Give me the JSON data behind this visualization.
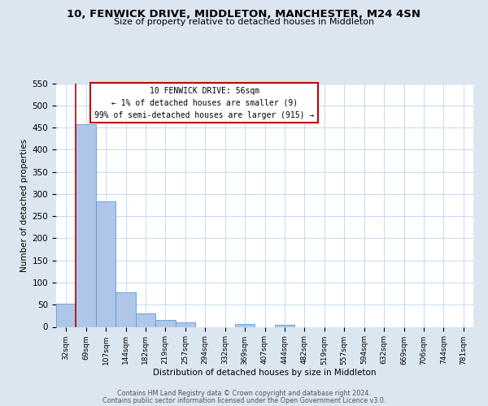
{
  "title": "10, FENWICK DRIVE, MIDDLETON, MANCHESTER, M24 4SN",
  "subtitle": "Size of property relative to detached houses in Middleton",
  "bar_labels": [
    "32sqm",
    "69sqm",
    "107sqm",
    "144sqm",
    "182sqm",
    "219sqm",
    "257sqm",
    "294sqm",
    "332sqm",
    "369sqm",
    "407sqm",
    "444sqm",
    "482sqm",
    "519sqm",
    "557sqm",
    "594sqm",
    "632sqm",
    "669sqm",
    "706sqm",
    "744sqm",
    "781sqm"
  ],
  "bar_values": [
    53,
    457,
    283,
    78,
    31,
    16,
    10,
    0,
    0,
    6,
    0,
    5,
    0,
    0,
    0,
    0,
    0,
    0,
    0,
    0,
    0
  ],
  "bar_color": "#aec6e8",
  "bar_edge_color": "#5b9bd5",
  "background_color": "#dce6f1",
  "plot_background": "#ffffff",
  "grid_color": "#c5d9f1",
  "marker_line_color": "#c00000",
  "ylim": [
    0,
    550
  ],
  "yticks": [
    0,
    50,
    100,
    150,
    200,
    250,
    300,
    350,
    400,
    450,
    500,
    550
  ],
  "ylabel": "Number of detached properties",
  "xlabel": "Distribution of detached houses by size in Middleton",
  "annotation_title": "10 FENWICK DRIVE: 56sqm",
  "annotation_line1": "← 1% of detached houses are smaller (9)",
  "annotation_line2": "99% of semi-detached houses are larger (915) →",
  "annotation_box_color": "#ffffff",
  "annotation_border_color": "#c00000",
  "footer1": "Contains HM Land Registry data © Crown copyright and database right 2024.",
  "footer2": "Contains public sector information licensed under the Open Government Licence v3.0."
}
